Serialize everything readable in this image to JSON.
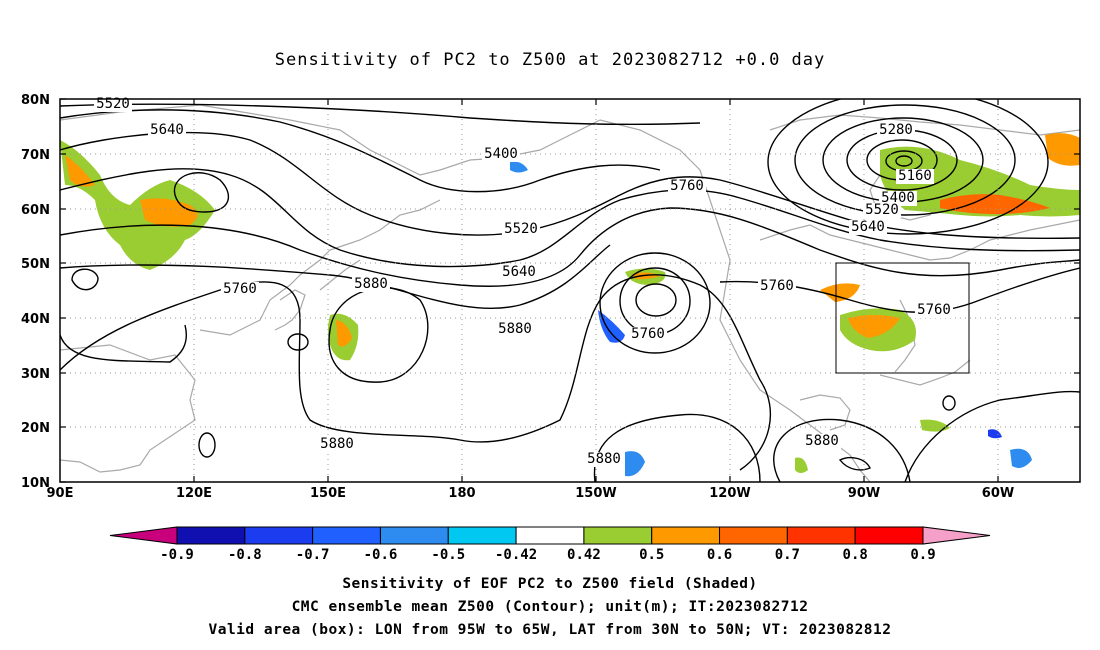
{
  "title": "Sensitivity of PC2 to Z500 at 2023082712 +0.0 day",
  "lat_labels": [
    "80N",
    "70N",
    "60N",
    "50N",
    "40N",
    "30N",
    "20N",
    "10N"
  ],
  "lon_labels": [
    "90E",
    "120E",
    "150E",
    "180",
    "150W",
    "120W",
    "90W",
    "60W"
  ],
  "contour_labels": [
    {
      "text": "5520",
      "area": "north-pacific-upper-left"
    },
    {
      "text": "5640",
      "area": "north-pacific-upper-left"
    },
    {
      "text": "5400",
      "area": "bering-sea"
    },
    {
      "text": "5520",
      "area": "gulf-of-alaska-trough"
    },
    {
      "text": "5640",
      "area": "gulf-of-alaska-trough"
    },
    {
      "text": "5760",
      "area": "gulf-of-alaska-trough"
    },
    {
      "text": "5760",
      "area": "east-asia"
    },
    {
      "text": "5880",
      "area": "western-pacific-high"
    },
    {
      "text": "5760",
      "area": "west-coast-cutoff-low"
    },
    {
      "text": "5760",
      "area": "canada"
    },
    {
      "text": "5280",
      "area": "hudson-bay-low"
    },
    {
      "text": "5160",
      "area": "hudson-bay-low"
    },
    {
      "text": "5400",
      "area": "hudson-bay-low"
    },
    {
      "text": "5520",
      "area": "hudson-bay-low"
    },
    {
      "text": "5640",
      "area": "hudson-bay-low"
    },
    {
      "text": "5880",
      "area": "central-us"
    },
    {
      "text": "5760",
      "area": "valid-box"
    },
    {
      "text": "5880",
      "area": "tropical-west-pacific"
    },
    {
      "text": "5880",
      "area": "tropical-east-pacific"
    },
    {
      "text": "5880",
      "area": "gulf-of-mexico"
    }
  ],
  "colorbar": {
    "tick_labels": [
      "-0.9",
      "-0.8",
      "-0.7",
      "-0.6",
      "-0.5",
      "-0.42",
      "0.42",
      "0.5",
      "0.6",
      "0.7",
      "0.8",
      "0.9"
    ],
    "colors": [
      "#c8007c",
      "#1010b0",
      "#1c3cf0",
      "#2060ff",
      "#2e8cf0",
      "#00c8f0",
      "#ffffff",
      "#9acd32",
      "#ff9900",
      "#ff6600",
      "#ff3300",
      "#ff0000",
      "#f5a0c8"
    ]
  },
  "captions": {
    "line1": "Sensitivity of EOF PC2 to Z500 field (Shaded)",
    "line2": "CMC ensemble mean Z500 (Contour); unit(m); IT:2023082712",
    "line3": "Valid area (box): LON from 95W to 65W, LAT from 30N to 50N; VT: 2023082812"
  },
  "valid_box": {
    "lon_west": "95W",
    "lon_east": "65W",
    "lat_south": "30N",
    "lat_north": "50N"
  },
  "colors": {
    "contour": "#000000",
    "coastline": "#a9a9a9",
    "grid": "#999999",
    "positive": "#9acd32",
    "negative": "#2e8cf0"
  }
}
